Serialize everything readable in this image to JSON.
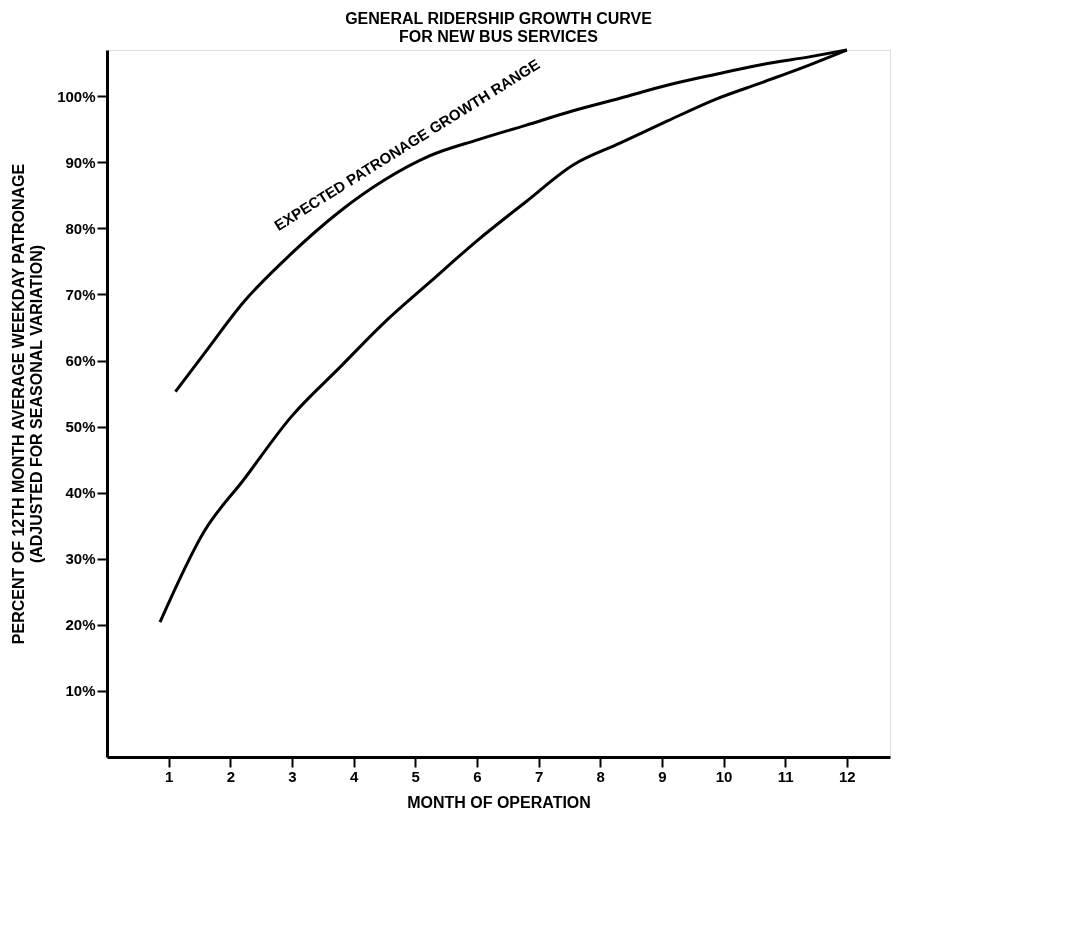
{
  "chart_data": {
    "type": "line",
    "title": "GENERAL RIDERSHIP GROWTH CURVE\nFOR NEW BUS SERVICES",
    "xlabel": "MONTH OF OPERATION",
    "ylabel": "PERCENT OF 12TH MONTH AVERAGE WEEKDAY PATRONAGE\n(ADJUSTED FOR SEASONAL VARIATION)",
    "series": [
      {
        "color": "#000000",
        "x": [
          1.11,
          1.58,
          2.22,
          2.98,
          3.78,
          4.48,
          5.24,
          6.01,
          6.79,
          7.56,
          8.32,
          9.1,
          9.86,
          10.63,
          11.41,
          12.0
        ],
        "values": [
          55.3,
          61.1,
          68.9,
          76.1,
          82.6,
          87.2,
          91.0,
          93.4,
          95.6,
          97.8,
          99.7,
          101.7,
          103.3,
          104.8,
          106.0,
          107.0
        ]
      },
      {
        "color": "#000000",
        "x": [
          0.86,
          1.58,
          2.22,
          2.98,
          3.78,
          4.48,
          5.24,
          6.01,
          6.79,
          7.56,
          8.32,
          9.1,
          9.86,
          10.63,
          11.41,
          12.0
        ],
        "values": [
          20.4,
          34.2,
          42.0,
          51.4,
          59.0,
          65.6,
          71.9,
          78.2,
          84.0,
          89.6,
          92.9,
          96.3,
          99.5,
          102.1,
          104.8,
          107.0
        ]
      }
    ],
    "annotations": [
      "EXPECTED PATRONAGE GROWTH RANGE"
    ],
    "xlim": [
      0,
      12.7
    ],
    "xticks": [
      1,
      2,
      3,
      4,
      5,
      6,
      7,
      8,
      9,
      10,
      11,
      12
    ],
    "ylim": [
      0,
      107
    ],
    "yticks": [
      {
        "value": 10,
        "label": "10%"
      },
      {
        "value": 20,
        "label": "20%"
      },
      {
        "value": 30,
        "label": "30%"
      },
      {
        "value": 40,
        "label": "40%"
      },
      {
        "value": 50,
        "label": "50%"
      },
      {
        "value": 60,
        "label": "60%"
      },
      {
        "value": 70,
        "label": "70%"
      },
      {
        "value": 80,
        "label": "80%"
      },
      {
        "value": 90,
        "label": "90%"
      },
      {
        "value": 100,
        "label": "100%"
      }
    ],
    "grid": false,
    "marker": "none",
    "line_style": "solid"
  }
}
